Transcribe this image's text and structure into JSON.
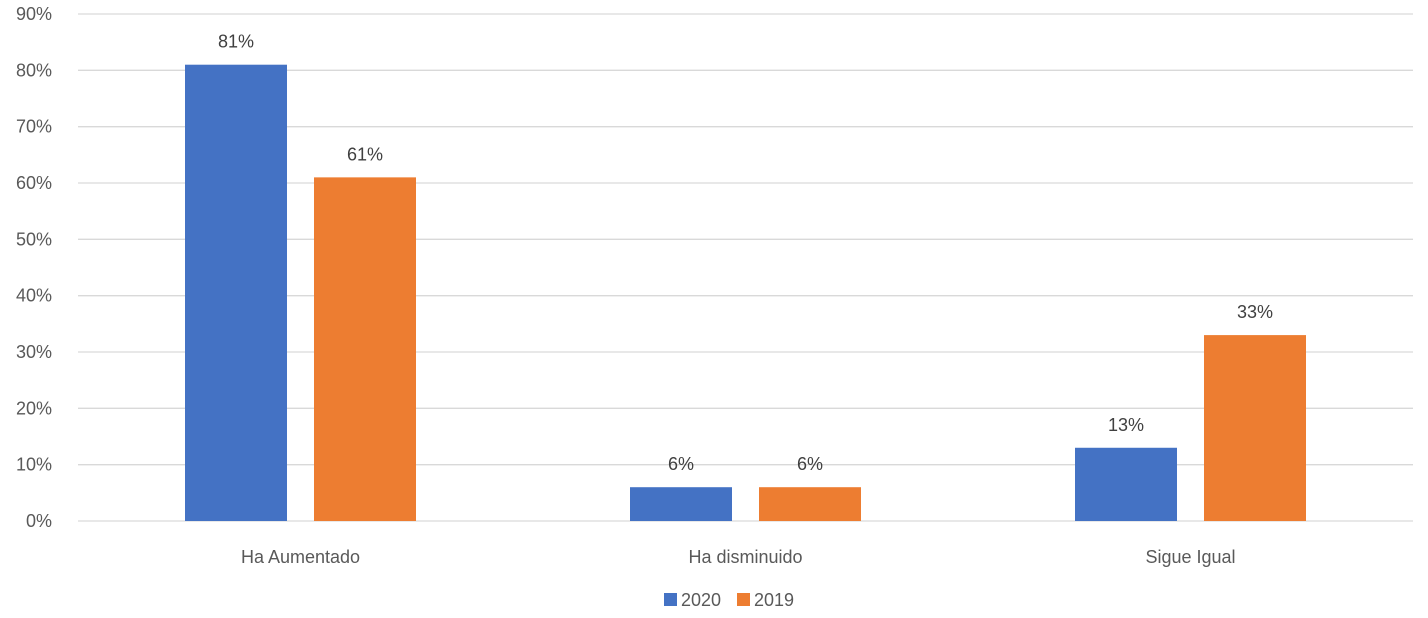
{
  "chart_data": {
    "type": "bar",
    "categories": [
      "Ha Aumentado",
      "Ha disminuido",
      "Sigue Igual"
    ],
    "series": [
      {
        "name": "2020",
        "values": [
          81,
          6,
          13
        ],
        "labels": [
          "81%",
          "6%",
          "13%"
        ],
        "color": "#4472C4"
      },
      {
        "name": "2019",
        "values": [
          61,
          6,
          33
        ],
        "labels": [
          "61%",
          "6%",
          "33%"
        ],
        "color": "#ED7D31"
      }
    ],
    "ylim": [
      0,
      90
    ],
    "yticks": [
      0,
      10,
      20,
      30,
      40,
      50,
      60,
      70,
      80,
      90
    ],
    "ytick_labels": [
      "0%",
      "10%",
      "20%",
      "30%",
      "40%",
      "50%",
      "60%",
      "70%",
      "80%",
      "90%"
    ],
    "title": "",
    "xlabel": "",
    "ylabel": "",
    "grid": true,
    "legend_position": "bottom",
    "gridline_color": "#D9D9D9"
  }
}
